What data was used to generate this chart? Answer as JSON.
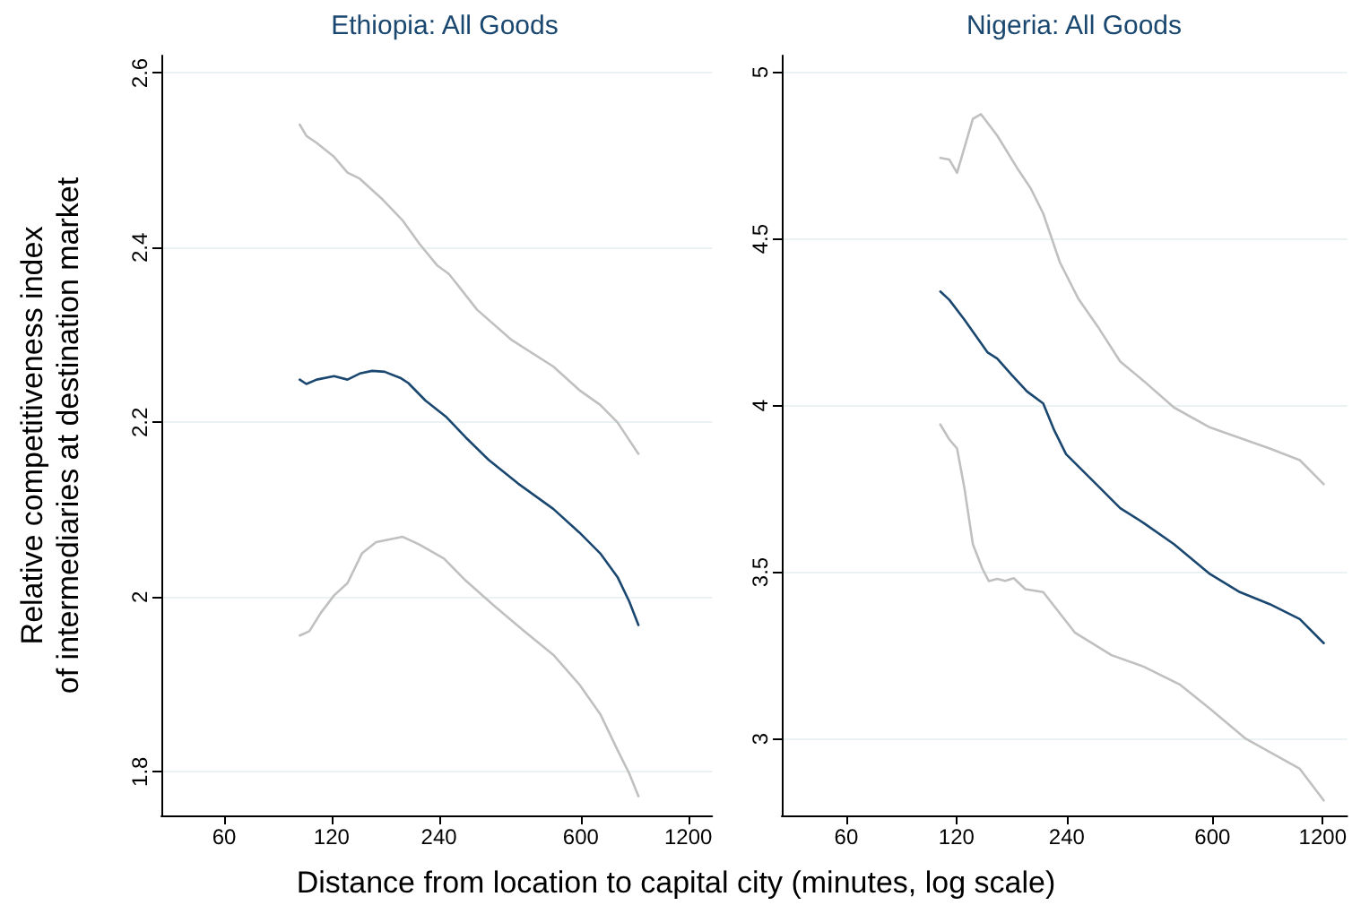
{
  "chart_data": [
    {
      "type": "line",
      "title": "Ethiopia: All Goods",
      "ylabel": "Relative competitiveness index\nof intermediaries at destination market",
      "xlabel": "Distance from location to capital city (minutes, log scale)",
      "log": "x",
      "grid": "y",
      "marker": "none",
      "line_style": "solid",
      "xlim": [
        40,
        1400
      ],
      "xticks": [
        60,
        120,
        240,
        600,
        1200
      ],
      "ylim": [
        1.75,
        2.62
      ],
      "yticks": [
        1.8,
        2,
        2.2,
        2.4,
        2.6
      ],
      "series": [
        {
          "color": "#c0c0c0",
          "x": [
            97.7,
            102,
            109,
            122,
            133,
            144,
            167,
            190,
            212,
            237,
            256,
            307,
            382,
            502,
            594,
            680,
            760,
            870
          ],
          "values": [
            2.541,
            2.528,
            2.52,
            2.504,
            2.486,
            2.479,
            2.455,
            2.431,
            2.404,
            2.38,
            2.37,
            2.329,
            2.295,
            2.264,
            2.237,
            2.22,
            2.2,
            2.164
          ]
        },
        {
          "color": "#1a476f",
          "x": [
            97.7,
            102,
            109,
            122,
            133,
            144,
            156,
            169,
            187,
            197,
            220,
            252,
            285,
            331,
            400,
            502,
            594,
            680,
            760,
            820,
            870
          ],
          "values": [
            2.249,
            2.244,
            2.249,
            2.253,
            2.249,
            2.256,
            2.259,
            2.258,
            2.251,
            2.245,
            2.225,
            2.206,
            2.183,
            2.157,
            2.13,
            2.101,
            2.074,
            2.05,
            2.023,
            1.995,
            1.968
          ]
        },
        {
          "color": "#c0c0c0",
          "x": [
            97.7,
            104,
            112,
            122,
            133,
            146,
            160,
            190,
            212,
            248,
            285,
            345,
            416,
            502,
            594,
            680,
            760,
            820,
            870
          ],
          "values": [
            1.956,
            1.961,
            1.982,
            2.002,
            2.016,
            2.05,
            2.063,
            2.069,
            2.06,
            2.044,
            2.019,
            1.989,
            1.961,
            1.934,
            1.9,
            1.866,
            1.825,
            1.798,
            1.772
          ]
        }
      ]
    },
    {
      "type": "line",
      "title": "Nigeria: All Goods",
      "log": "x",
      "grid": "y",
      "marker": "none",
      "line_style": "solid",
      "xlim": [
        40,
        1400
      ],
      "xticks": [
        60,
        120,
        240,
        600,
        1200
      ],
      "ylim": [
        2.77,
        5.05
      ],
      "yticks": [
        3,
        3.5,
        4,
        4.5,
        5
      ],
      "series": [
        {
          "color": "#c0c0c0",
          "x": [
            108.4,
            114.7,
            120.4,
            133,
            140,
            155,
            177,
            191,
            207,
            230,
            258,
            294,
            336,
            390,
            471,
            591,
            860,
            1039,
            1208
          ],
          "values": [
            4.743,
            4.738,
            4.698,
            4.86,
            4.874,
            4.81,
            4.707,
            4.653,
            4.576,
            4.429,
            4.321,
            4.231,
            4.132,
            4.073,
            3.994,
            3.934,
            3.871,
            3.836,
            3.764
          ]
        },
        {
          "color": "#1a476f",
          "x": [
            108.4,
            114.7,
            126,
            146,
            155,
            170,
            187,
            207,
            222,
            239,
            253,
            289,
            336,
            390,
            471,
            591,
            713,
            860,
            1039,
            1208
          ],
          "values": [
            4.342,
            4.317,
            4.258,
            4.159,
            4.141,
            4.091,
            4.042,
            4.006,
            3.925,
            3.854,
            3.827,
            3.764,
            3.692,
            3.647,
            3.584,
            3.494,
            3.44,
            3.404,
            3.359,
            3.287
          ]
        },
        {
          "color": "#c0c0c0",
          "x": [
            108.4,
            114.7,
            120.4,
            126,
            133,
            141,
            147,
            155,
            163,
            172,
            185,
            207,
            253,
            318,
            390,
            490,
            591,
            740,
            1039,
            1208
          ],
          "values": [
            3.943,
            3.898,
            3.871,
            3.755,
            3.584,
            3.512,
            3.473,
            3.48,
            3.474,
            3.482,
            3.449,
            3.44,
            3.318,
            3.251,
            3.216,
            3.162,
            3.09,
            3.0,
            2.91,
            2.815
          ]
        }
      ]
    }
  ]
}
